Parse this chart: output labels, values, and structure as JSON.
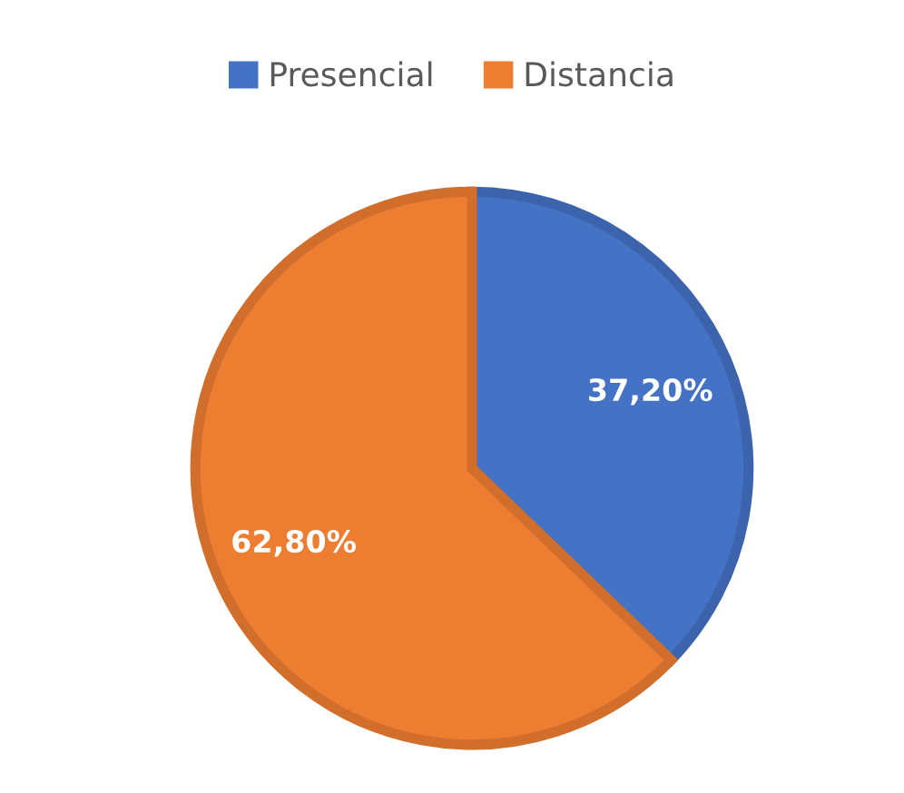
{
  "chart_data": {
    "type": "pie",
    "categories": [
      "Presencial",
      "Distancia"
    ],
    "values": [
      37.2,
      62.8
    ],
    "colors": [
      "#4472c4",
      "#ed7d31"
    ],
    "value_labels": [
      "37,20%",
      "62,80%"
    ],
    "legend": "top"
  }
}
